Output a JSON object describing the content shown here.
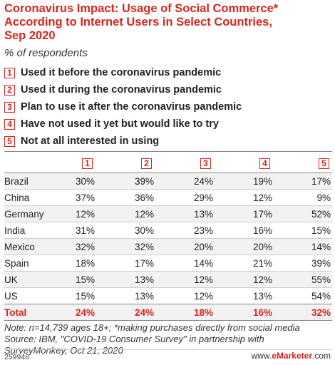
{
  "header": {
    "title_lines": [
      "Coronavirus Impact: Usage of Social Commerce*",
      "According to Internet Users in Select Countries,",
      "Sep 2020"
    ],
    "subtitle": "% of respondents"
  },
  "legend": [
    {
      "key": "1",
      "label": "Used it before the coronavirus pandemic"
    },
    {
      "key": "2",
      "label": "Used it during the coronavirus pandemic"
    },
    {
      "key": "3",
      "label": "Plan to use it after the coronavirus pandemic"
    },
    {
      "key": "4",
      "label": "Have not used it yet but would like to try"
    },
    {
      "key": "5",
      "label": "Not at all interested in using"
    }
  ],
  "chart_data": {
    "type": "table",
    "columns": [
      "1",
      "2",
      "3",
      "4",
      "5"
    ],
    "rows": [
      {
        "name": "Brazil",
        "values": [
          "30%",
          "39%",
          "24%",
          "19%",
          "17%"
        ]
      },
      {
        "name": "China",
        "values": [
          "37%",
          "36%",
          "29%",
          "12%",
          "9%"
        ]
      },
      {
        "name": "Germany",
        "values": [
          "12%",
          "12%",
          "13%",
          "17%",
          "52%"
        ]
      },
      {
        "name": "India",
        "values": [
          "31%",
          "30%",
          "23%",
          "16%",
          "15%"
        ]
      },
      {
        "name": "Mexico",
        "values": [
          "32%",
          "32%",
          "20%",
          "20%",
          "14%"
        ]
      },
      {
        "name": "Spain",
        "values": [
          "18%",
          "17%",
          "14%",
          "21%",
          "39%"
        ]
      },
      {
        "name": "UK",
        "values": [
          "15%",
          "13%",
          "12%",
          "12%",
          "55%"
        ]
      },
      {
        "name": "US",
        "values": [
          "15%",
          "13%",
          "12%",
          "13%",
          "54%"
        ]
      }
    ],
    "total": {
      "name": "Total",
      "values": [
        "24%",
        "24%",
        "18%",
        "16%",
        "32%"
      ]
    }
  },
  "footer": {
    "note_lines": [
      "Note: n=14,739 ages 18+; *making purchases directly from social media",
      "Source: IBM, \"COVID-19 Consumer Survey\" in partnership with",
      "SurveyMonkey, Oct 21, 2020"
    ],
    "id": "259946",
    "brand_prefix": "www.",
    "brand_name": "eMarketer",
    "brand_suffix": ".com"
  },
  "colors": {
    "accent": "#d5261f",
    "shade": "#f2f2f2"
  }
}
